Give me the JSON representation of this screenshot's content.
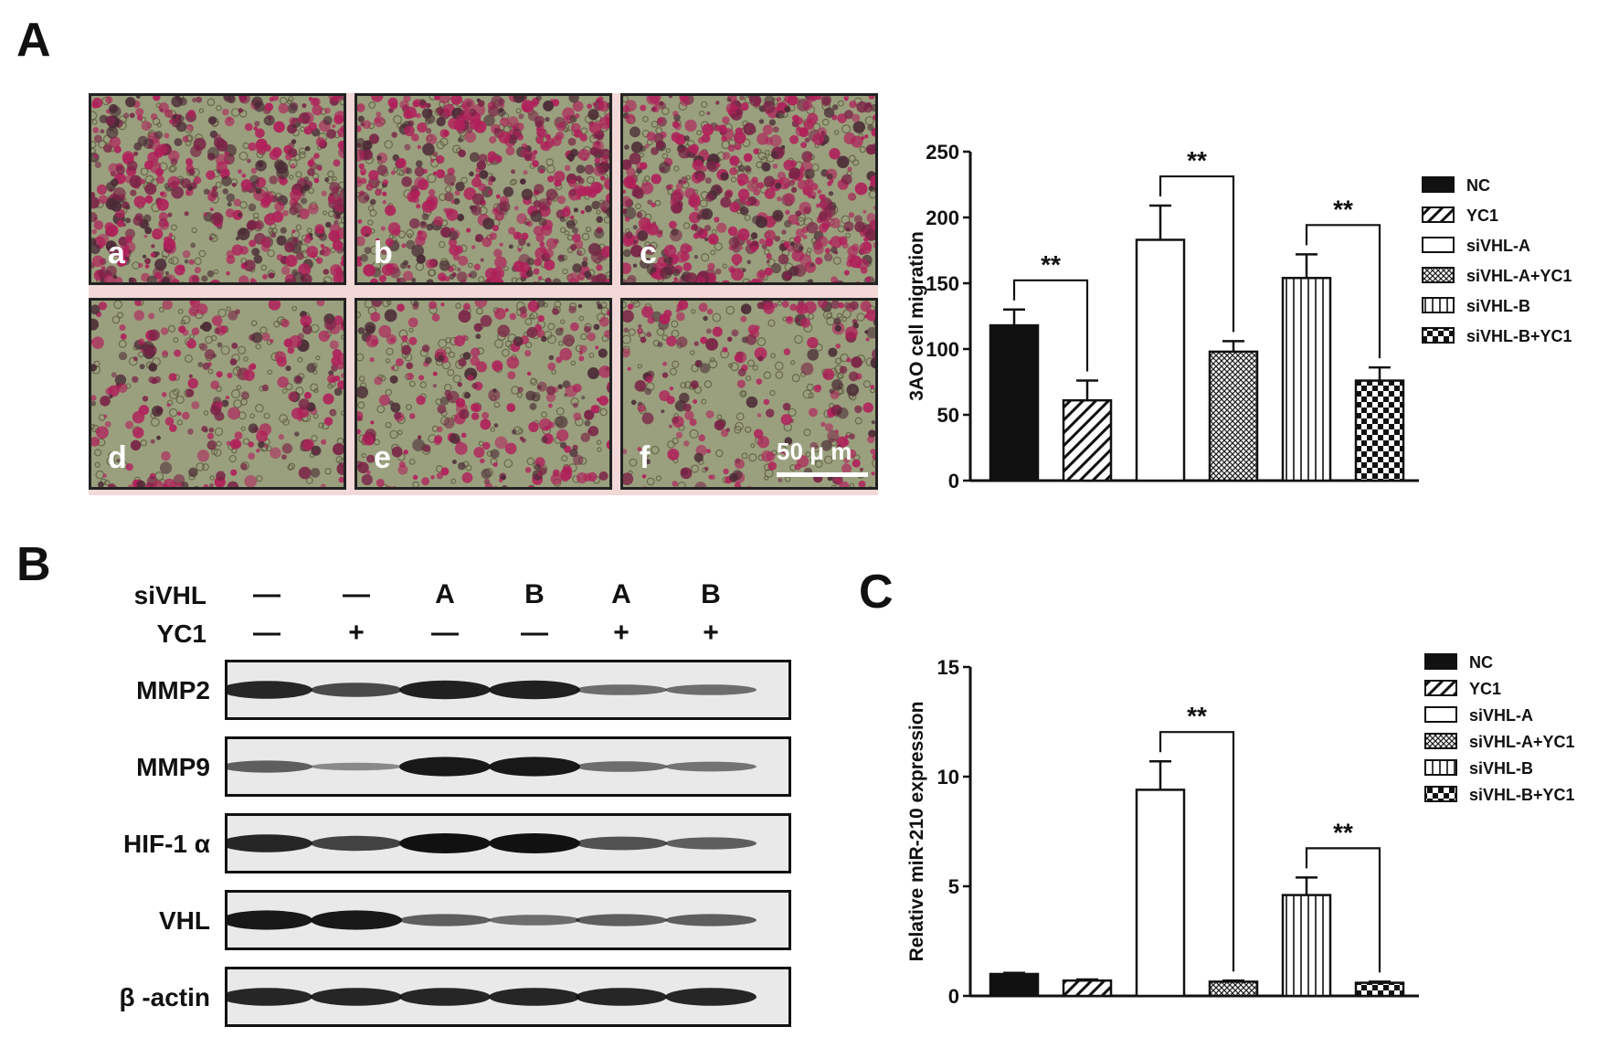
{
  "panels": {
    "a": "A",
    "b": "B",
    "c": "C"
  },
  "micrographs": {
    "labels": [
      "a",
      "b",
      "c",
      "d",
      "e",
      "f"
    ],
    "scale_bar": "50 μ m"
  },
  "western_blot": {
    "header_rows": [
      {
        "label": "siVHL",
        "values": [
          "—",
          "—",
          "A",
          "B",
          "A",
          "B"
        ]
      },
      {
        "label": "YC1",
        "values": [
          "—",
          "+",
          "—",
          "—",
          "+",
          "+"
        ]
      }
    ],
    "bands": [
      {
        "label": "MMP2",
        "intensity": [
          0.85,
          0.6,
          0.9,
          0.9,
          0.35,
          0.35
        ]
      },
      {
        "label": "MMP9",
        "intensity": [
          0.45,
          0.15,
          0.95,
          0.95,
          0.35,
          0.3
        ]
      },
      {
        "label": "HIF-1 α",
        "intensity": [
          0.85,
          0.65,
          1.0,
          1.0,
          0.55,
          0.45
        ]
      },
      {
        "label": "VHL",
        "intensity": [
          0.95,
          0.95,
          0.45,
          0.35,
          0.45,
          0.45
        ]
      },
      {
        "label": "β -actin",
        "intensity": [
          0.85,
          0.85,
          0.85,
          0.85,
          0.85,
          0.85
        ]
      }
    ]
  },
  "chart_data": [
    {
      "type": "bar",
      "ylabel": "3AO cell migration",
      "ylim": [
        0,
        250
      ],
      "yticks": [
        "0",
        "50",
        "100",
        "150",
        "200",
        "250"
      ],
      "categories": [
        "NC",
        "YC1",
        "siVHL-A",
        "siVHL-A+YC1",
        "siVHL-B",
        "siVHL-B+YC1"
      ],
      "values": [
        118,
        61,
        183,
        98,
        154,
        76
      ],
      "errors": [
        12,
        15,
        26,
        8,
        18,
        10
      ],
      "patterns": [
        "solid",
        "diag",
        "open",
        "cross",
        "vstripe",
        "checker"
      ],
      "legend": [
        "NC",
        "YC1",
        "siVHL-A",
        "siVHL-A+YC1",
        "siVHL-B",
        "siVHL-B+YC1"
      ],
      "significance": [
        {
          "from": 0,
          "to": 1,
          "label": "**"
        },
        {
          "from": 2,
          "to": 3,
          "label": "**"
        },
        {
          "from": 4,
          "to": 5,
          "label": "**"
        }
      ]
    },
    {
      "type": "bar",
      "ylabel": "Relative miR-210 expression",
      "ylim": [
        0,
        15
      ],
      "yticks": [
        "0",
        "5",
        "10",
        "15"
      ],
      "categories": [
        "NC",
        "YC1",
        "siVHL-A",
        "siVHL-A+YC1",
        "siVHL-B",
        "siVHL-B+YC1"
      ],
      "values": [
        1.0,
        0.7,
        9.4,
        0.65,
        4.6,
        0.6
      ],
      "errors": [
        0.05,
        0.05,
        1.3,
        0.05,
        0.8,
        0.05
      ],
      "patterns": [
        "solid",
        "diag",
        "open",
        "cross",
        "vstripe",
        "checker"
      ],
      "legend": [
        "NC",
        "YC1",
        "siVHL-A",
        "siVHL-A+YC1",
        "siVHL-B",
        "siVHL-B+YC1"
      ],
      "significance": [
        {
          "from": 2,
          "to": 3,
          "label": "**"
        },
        {
          "from": 4,
          "to": 5,
          "label": "**"
        }
      ]
    }
  ],
  "colors": {
    "bar_stroke": "#111111",
    "cell_stain": "#b0205a",
    "background_field": "#9aa07e"
  }
}
